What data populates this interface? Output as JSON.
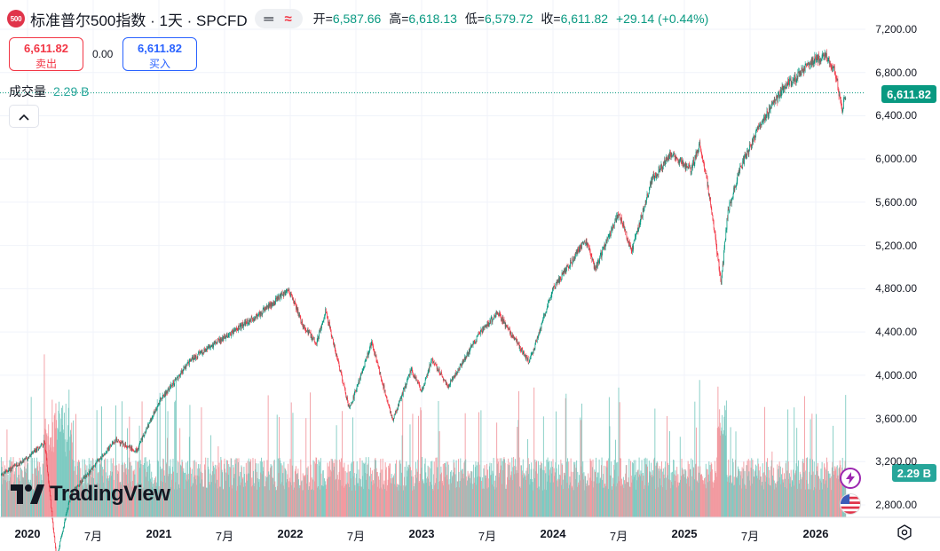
{
  "header": {
    "logo_text": "500",
    "title": "标准普尔500指数 · 1天 · SPCFD",
    "open_label": "开=",
    "open": "6,587.66",
    "high_label": "高=",
    "high": "6,618.13",
    "low_label": "低=",
    "low": "6,579.72",
    "close_label": "收=",
    "close": "6,611.82",
    "change": "+29.14 (+0.44%)"
  },
  "trade": {
    "sell_price": "6,611.82",
    "sell_label": "卖出",
    "spread": "0.00",
    "buy_price": "6,611.82",
    "buy_label": "买入"
  },
  "volume": {
    "label": "成交量",
    "value": "2.29 B"
  },
  "price_tag": "6,611.82",
  "volume_tag": "2.29 B",
  "branding": {
    "text": "TradingView"
  },
  "colors": {
    "up": "#089981",
    "down": "#f23645",
    "vol_up": "#7fcbc2",
    "vol_down": "#f29aa0",
    "accent_blue": "#2962ff"
  },
  "icons": [
    "lightning-icon",
    "us-flag-icon",
    "settings-icon",
    "chevron-up-icon"
  ],
  "chart_data": {
    "type": "candlestick",
    "title": "标准普尔500指数 · 1天 · SPCFD",
    "y_ticks": [
      2800,
      3200,
      3600,
      4000,
      4400,
      4800,
      5200,
      5600,
      6000,
      6400,
      6800,
      7200
    ],
    "y_tick_labels": [
      "2,800.00",
      "3,200.00",
      "3,600.00",
      "4,000.00",
      "4,400.00",
      "4,800.00",
      "5,200.00",
      "5,600.00",
      "6,000.00",
      "6,400.00",
      "6,800.00",
      "7,200.00"
    ],
    "ylim": [
      2700,
      7300
    ],
    "x_tick_labels": [
      {
        "label": "2020",
        "t": 2020.0,
        "bold": true
      },
      {
        "label": "7月",
        "t": 2020.5,
        "bold": false
      },
      {
        "label": "2021",
        "t": 2021.0,
        "bold": true
      },
      {
        "label": "7月",
        "t": 2021.5,
        "bold": false
      },
      {
        "label": "2022",
        "t": 2022.0,
        "bold": true
      },
      {
        "label": "7月",
        "t": 2022.5,
        "bold": false
      },
      {
        "label": "2023",
        "t": 2023.0,
        "bold": true
      },
      {
        "label": "7月",
        "t": 2023.5,
        "bold": false
      },
      {
        "label": "2024",
        "t": 2024.0,
        "bold": true
      },
      {
        "label": "7月",
        "t": 2024.5,
        "bold": false
      },
      {
        "label": "2025",
        "t": 2025.0,
        "bold": true
      },
      {
        "label": "7月",
        "t": 2025.5,
        "bold": false
      },
      {
        "label": "2026",
        "t": 2026.0,
        "bold": true
      }
    ],
    "xlim": [
      2019.8,
      2026.78
    ],
    "last_price": 6611.82,
    "price_path": [
      [
        2019.8,
        3080
      ],
      [
        2020.0,
        3230
      ],
      [
        2020.13,
        3380
      ],
      [
        2020.22,
        2300
      ],
      [
        2020.33,
        2900
      ],
      [
        2020.5,
        3150
      ],
      [
        2020.67,
        3400
      ],
      [
        2020.83,
        3300
      ],
      [
        2021.0,
        3750
      ],
      [
        2021.25,
        4150
      ],
      [
        2021.5,
        4350
      ],
      [
        2021.75,
        4550
      ],
      [
        2021.99,
        4790
      ],
      [
        2022.1,
        4450
      ],
      [
        2022.2,
        4300
      ],
      [
        2022.27,
        4600
      ],
      [
        2022.45,
        3680
      ],
      [
        2022.62,
        4300
      ],
      [
        2022.78,
        3580
      ],
      [
        2022.92,
        4050
      ],
      [
        2023.0,
        3850
      ],
      [
        2023.08,
        4150
      ],
      [
        2023.2,
        3900
      ],
      [
        2023.45,
        4400
      ],
      [
        2023.58,
        4580
      ],
      [
        2023.82,
        4120
      ],
      [
        2024.0,
        4800
      ],
      [
        2024.25,
        5250
      ],
      [
        2024.32,
        4980
      ],
      [
        2024.5,
        5500
      ],
      [
        2024.6,
        5150
      ],
      [
        2024.75,
        5800
      ],
      [
        2024.9,
        6050
      ],
      [
        2025.05,
        5900
      ],
      [
        2025.12,
        6140
      ],
      [
        2025.2,
        5600
      ],
      [
        2025.28,
        4850
      ],
      [
        2025.33,
        5500
      ],
      [
        2025.42,
        5900
      ],
      [
        2025.55,
        6250
      ],
      [
        2025.75,
        6650
      ],
      [
        2025.85,
        6750
      ],
      [
        2025.95,
        6900
      ],
      [
        2026.08,
        6950
      ],
      [
        2026.15,
        6800
      ],
      [
        2026.2,
        6450
      ],
      [
        2026.23,
        6612
      ]
    ]
  }
}
